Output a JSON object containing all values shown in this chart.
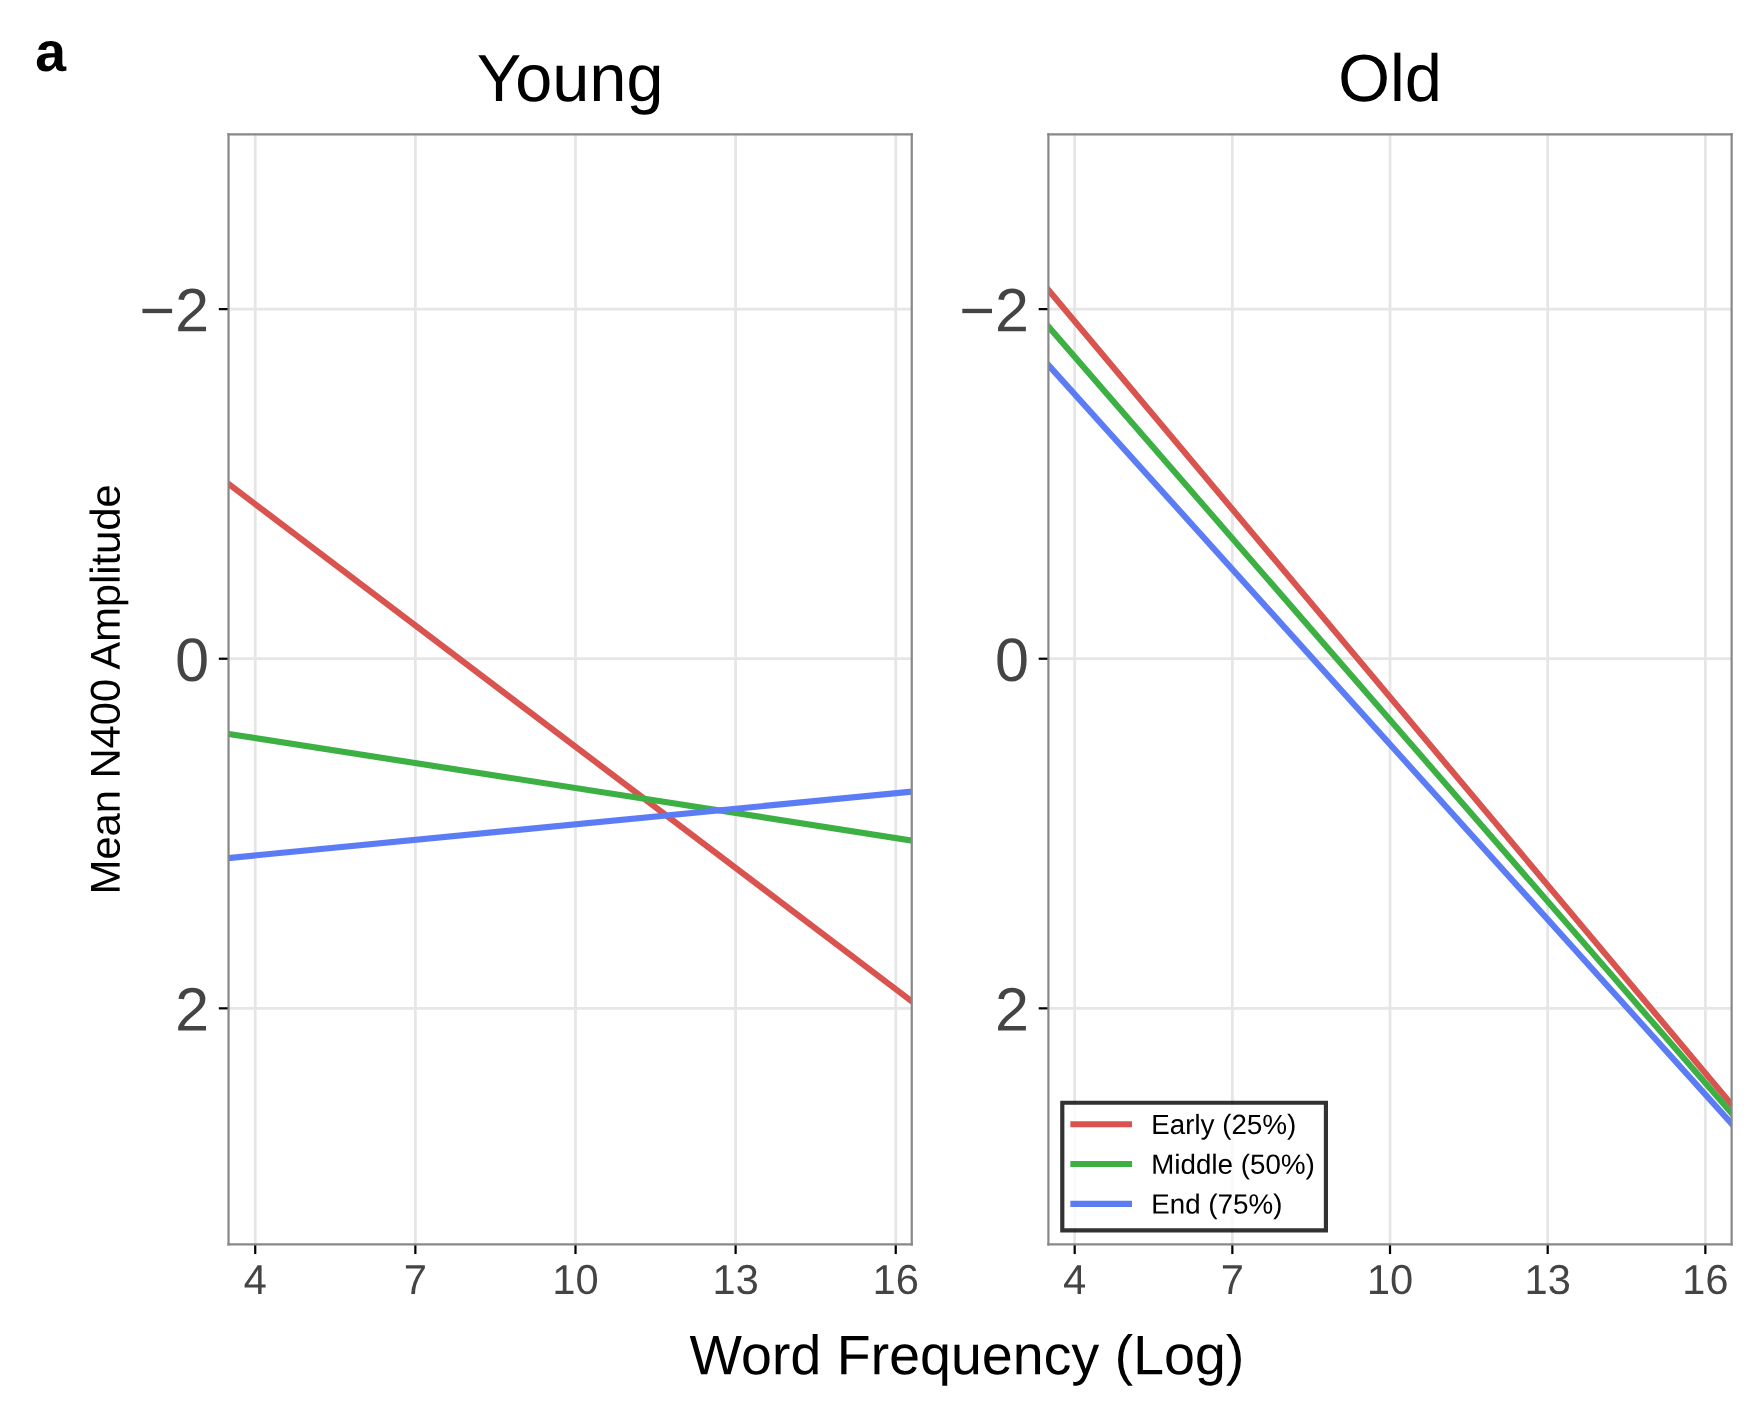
{
  "chart_data": [
    {
      "type": "line",
      "title": "Young",
      "xlabel": "Word Frequency (Log)",
      "ylabel": "Mean N400 Amplitude",
      "annotations": [
        "a"
      ],
      "xlim": [
        3.5,
        16.3
      ],
      "xticks": [
        4,
        7,
        10,
        13,
        16
      ],
      "ylim": [
        3.35,
        -3.0
      ],
      "yticks": [
        {
          "value": -2,
          "label": "−2"
        },
        0,
        2
      ],
      "grid": true,
      "series": [
        {
          "color": "#d9534f",
          "x": [
            3.5,
            16.3
          ],
          "values": [
            -1.0,
            1.96
          ]
        },
        {
          "color": "#3cb043",
          "x": [
            3.5,
            16.3
          ],
          "values": [
            0.43,
            1.04
          ]
        },
        {
          "color": "#5b7cf5",
          "x": [
            3.5,
            16.3
          ],
          "values": [
            1.14,
            0.76
          ]
        }
      ]
    },
    {
      "type": "line",
      "title": "Old",
      "xlim": [
        3.5,
        16.5
      ],
      "xticks": [
        4,
        7,
        10,
        13,
        16
      ],
      "ylim": [
        3.35,
        -3.0
      ],
      "yticks": [
        {
          "value": -2,
          "label": "−2"
        },
        0,
        2
      ],
      "grid": true,
      "legend": "bottom left",
      "series": [
        {
          "name": "Early (25%)",
          "color": "#d9534f",
          "x": [
            3.5,
            16.5
          ],
          "values": [
            -2.11,
            2.55
          ]
        },
        {
          "name": "Middle (50%)",
          "color": "#3cb043",
          "x": [
            3.5,
            16.5
          ],
          "values": [
            -1.9,
            2.6
          ]
        },
        {
          "name": "End (75%)",
          "color": "#5b7cf5",
          "x": [
            3.5,
            16.5
          ],
          "values": [
            -1.68,
            2.66
          ]
        }
      ]
    }
  ]
}
